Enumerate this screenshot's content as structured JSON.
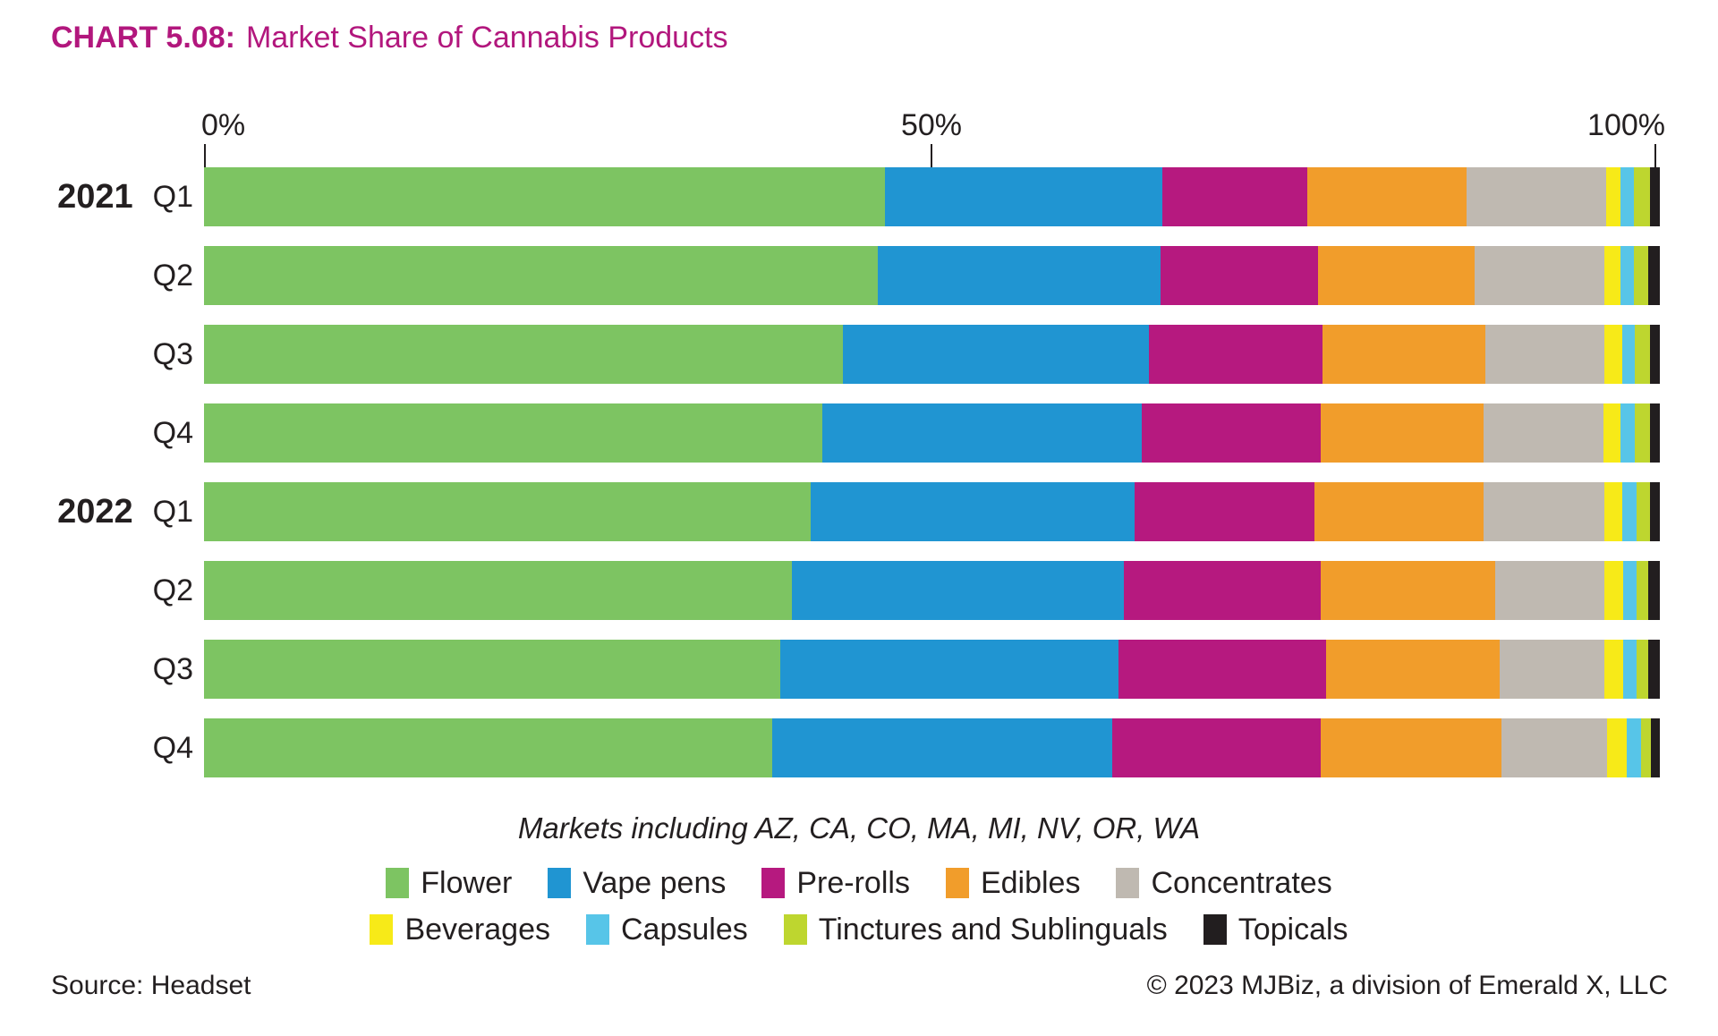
{
  "title": {
    "label": "CHART 5.08:",
    "text": "Market Share of Cannabis Products",
    "color": "#b2177d"
  },
  "axis": {
    "ticks": [
      "0%",
      "50%",
      "100%"
    ]
  },
  "note": "Markets including AZ, CA, CO, MA, MI, NV, OR, WA",
  "footer": {
    "source": "Source: Headset",
    "copyright": "© 2023 MJBiz, a division of Emerald X, LLC"
  },
  "chart_data": {
    "type": "bar",
    "stacked": true,
    "orientation": "horizontal",
    "unit": "percent",
    "xlim": [
      0,
      100
    ],
    "x_tick_labels": [
      "0%",
      "50%",
      "100%"
    ],
    "legend_position": "bottom",
    "legend_row_split": 5,
    "row_labels": [
      {
        "year": "2021",
        "quarter": "Q1"
      },
      {
        "year": "",
        "quarter": "Q2"
      },
      {
        "year": "",
        "quarter": "Q3"
      },
      {
        "year": "",
        "quarter": "Q4"
      },
      {
        "year": "2022",
        "quarter": "Q1"
      },
      {
        "year": "",
        "quarter": "Q2"
      },
      {
        "year": "",
        "quarter": "Q3"
      },
      {
        "year": "",
        "quarter": "Q4"
      }
    ],
    "series": [
      {
        "name": "Flower",
        "color": "#7dc462",
        "values": [
          46.8,
          46.3,
          43.9,
          42.5,
          41.7,
          40.4,
          39.6,
          39.0
        ]
      },
      {
        "name": "Vape pens",
        "color": "#2095d2",
        "values": [
          19.0,
          19.4,
          21.0,
          21.9,
          22.2,
          22.8,
          23.2,
          23.4
        ]
      },
      {
        "name": "Pre-rolls",
        "color": "#b6197f",
        "values": [
          10.0,
          10.8,
          11.9,
          12.3,
          12.4,
          13.5,
          14.3,
          14.3
        ]
      },
      {
        "name": "Edibles",
        "color": "#f19d2b",
        "values": [
          10.9,
          10.8,
          11.2,
          11.2,
          11.6,
          12.0,
          11.9,
          12.4
        ]
      },
      {
        "name": "Concentrates",
        "color": "#bfb9b1",
        "values": [
          9.6,
          8.9,
          8.2,
          8.2,
          8.3,
          7.5,
          7.2,
          7.3
        ]
      },
      {
        "name": "Beverages",
        "color": "#f7ea18",
        "values": [
          1.0,
          1.1,
          1.2,
          1.2,
          1.2,
          1.3,
          1.3,
          1.3
        ]
      },
      {
        "name": "Capsules",
        "color": "#57c5e8",
        "values": [
          0.9,
          0.9,
          0.9,
          1.0,
          1.0,
          0.9,
          0.9,
          1.0
        ]
      },
      {
        "name": "Tinctures and Sublinguals",
        "color": "#bed62f",
        "values": [
          1.1,
          1.0,
          1.0,
          1.0,
          0.9,
          0.8,
          0.8,
          0.7
        ]
      },
      {
        "name": "Topicals",
        "color": "#221e1f",
        "values": [
          0.7,
          0.8,
          0.7,
          0.7,
          0.7,
          0.8,
          0.8,
          0.6
        ]
      }
    ]
  }
}
